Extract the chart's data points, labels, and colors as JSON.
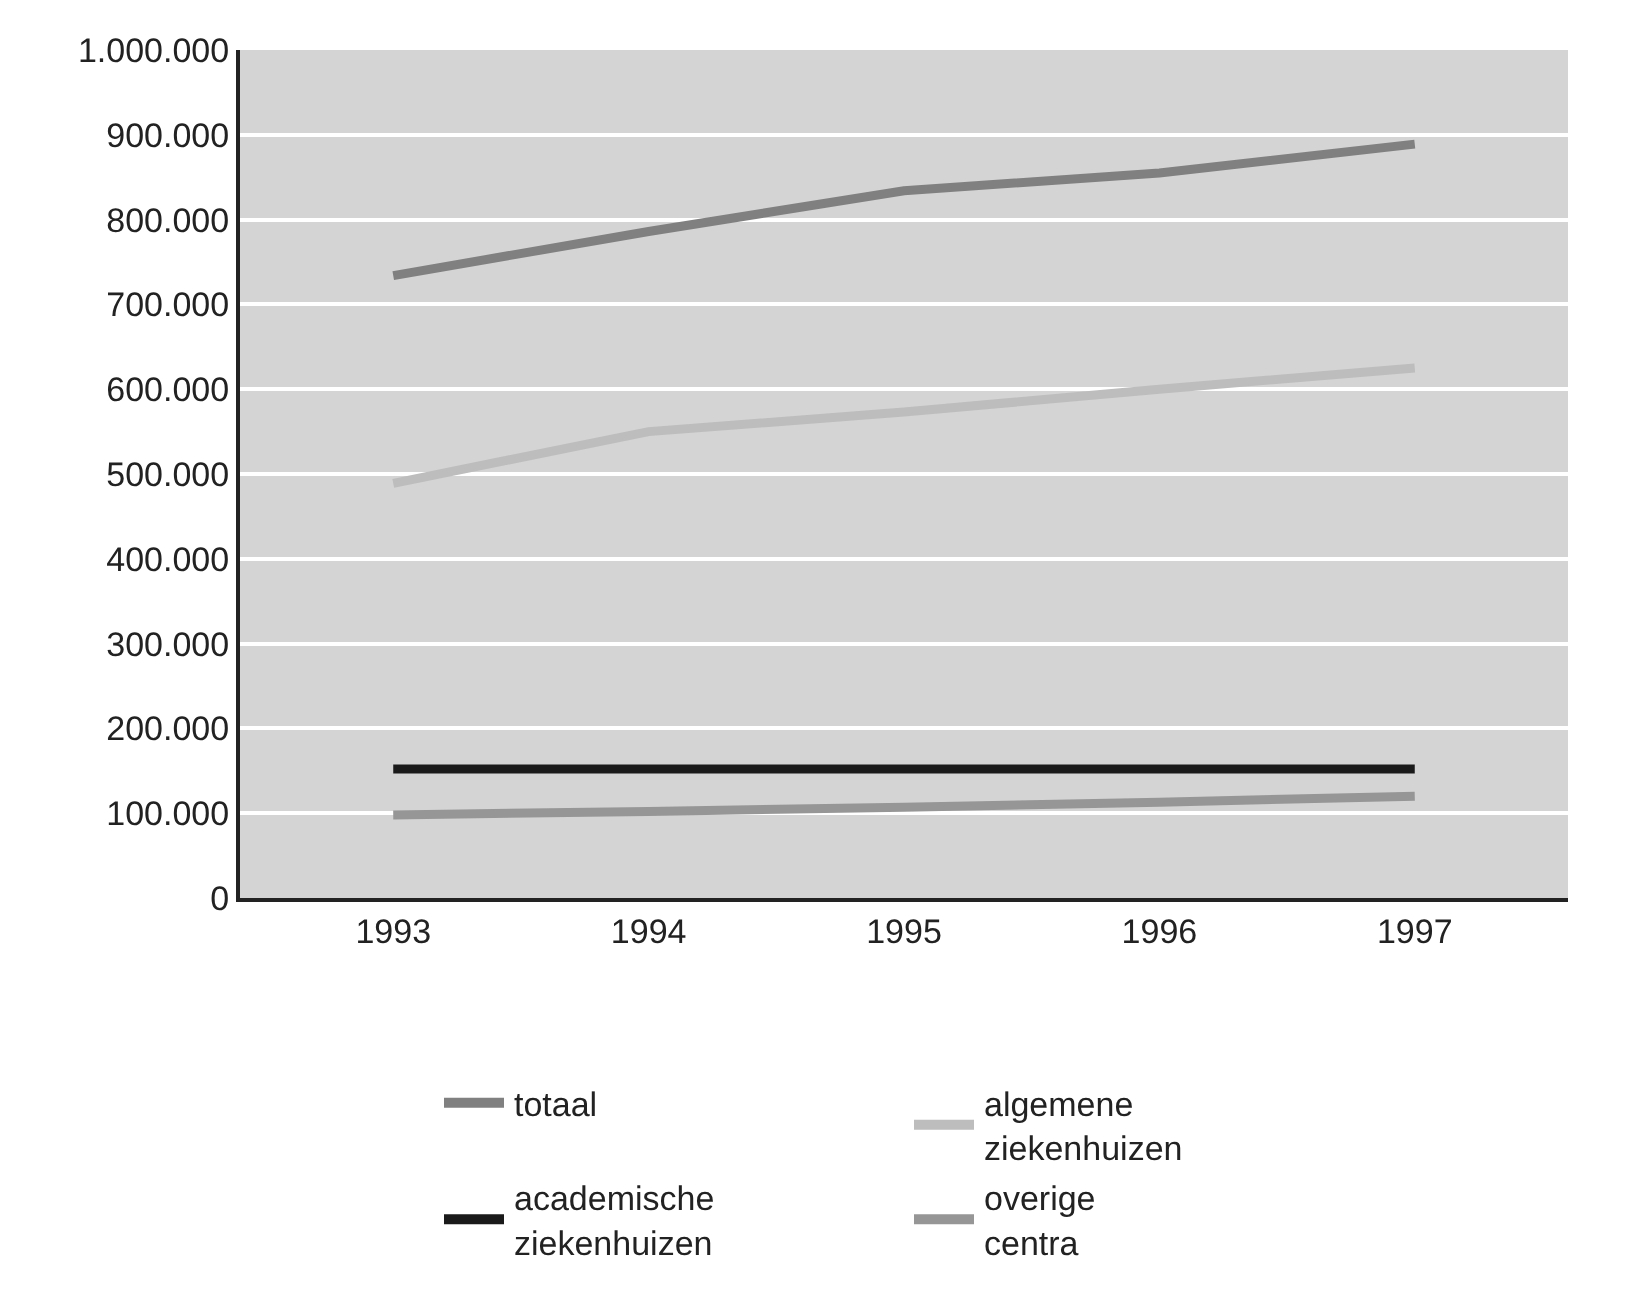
{
  "chart_data": {
    "type": "line",
    "categories": [
      "1993",
      "1994",
      "1995",
      "1996",
      "1997"
    ],
    "series": [
      {
        "name": "totaal",
        "color": "#808080",
        "values": [
          734000,
          786000,
          834000,
          855000,
          889000
        ]
      },
      {
        "name": "algemene\nziekenhuizen",
        "color": "#bdbdbd",
        "values": [
          489000,
          550000,
          573000,
          600000,
          625000
        ]
      },
      {
        "name": "academische\nziekenhuizen",
        "color": "#1a1a1a",
        "values": [
          152000,
          152000,
          152000,
          152000,
          152000
        ]
      },
      {
        "name": "overige\ncentra",
        "color": "#969696",
        "values": [
          98000,
          102000,
          107000,
          113000,
          120000
        ]
      }
    ],
    "ylim": [
      0,
      1000000
    ],
    "yticks": [
      {
        "value": 0,
        "label": "0"
      },
      {
        "value": 100000,
        "label": "100.000"
      },
      {
        "value": 200000,
        "label": "200.000"
      },
      {
        "value": 300000,
        "label": "300.000"
      },
      {
        "value": 400000,
        "label": "400.000"
      },
      {
        "value": 500000,
        "label": "500.000"
      },
      {
        "value": 600000,
        "label": "600.000"
      },
      {
        "value": 700000,
        "label": "700.000"
      },
      {
        "value": 800000,
        "label": "800.000"
      },
      {
        "value": 900000,
        "label": "900.000"
      },
      {
        "value": 1000000,
        "label": "1.000.000"
      }
    ],
    "grid": "y",
    "legend": "bottom",
    "marker": "none",
    "line_style": "solid"
  }
}
